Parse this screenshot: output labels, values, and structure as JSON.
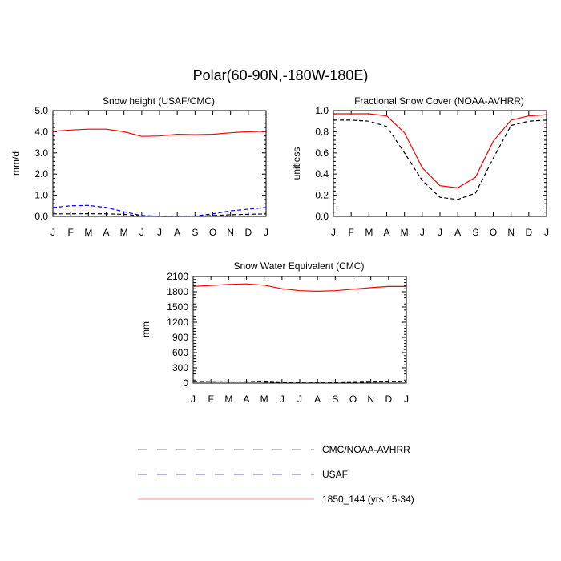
{
  "title": "Polar(60-90N,-180W-180E)",
  "colors": {
    "model": "#ff0000",
    "usaf": "#0000ff",
    "obs": "#000000",
    "legend_gray": "#808080",
    "legend_blue": "#6060c0",
    "legend_red": "#ff9090"
  },
  "legend": {
    "items": [
      {
        "label": "CMC/NOAA-AVHRR",
        "style": "dash-gray"
      },
      {
        "label": "USAF",
        "style": "dash-blue"
      },
      {
        "label": "1850_144 (yrs 15-34)",
        "style": "solid-red"
      }
    ]
  },
  "chart_data": [
    {
      "type": "line",
      "title": "Snow height (USAF/CMC)",
      "ylabel": "mm/d",
      "xlabel": "",
      "x": [
        "J",
        "F",
        "M",
        "A",
        "M",
        "J",
        "J",
        "A",
        "S",
        "O",
        "N",
        "D",
        "J"
      ],
      "ylim": [
        0,
        5
      ],
      "yticks": [
        "0.0",
        "1.0",
        "2.0",
        "3.0",
        "4.0",
        "5.0"
      ],
      "grid": false,
      "series": [
        {
          "name": "1850_144 (yrs 15-34)",
          "style": "solid-red",
          "values": [
            4.02,
            4.08,
            4.12,
            4.12,
            4.0,
            3.78,
            3.8,
            3.88,
            3.86,
            3.88,
            3.95,
            4.0,
            4.02
          ]
        },
        {
          "name": "USAF",
          "style": "dash-blue",
          "values": [
            0.42,
            0.5,
            0.52,
            0.42,
            0.22,
            0.04,
            0.01,
            0.01,
            0.02,
            0.12,
            0.26,
            0.34,
            0.42
          ]
        },
        {
          "name": "CMC/NOAA-AVHRR",
          "style": "dash-black",
          "values": [
            0.12,
            0.12,
            0.13,
            0.12,
            0.1,
            0.02,
            0.0,
            0.0,
            0.01,
            0.04,
            0.08,
            0.1,
            0.12
          ]
        }
      ]
    },
    {
      "type": "line",
      "title": "Fractional Snow Cover (NOAA-AVHRR)",
      "ylabel": "unitless",
      "xlabel": "",
      "x": [
        "J",
        "F",
        "M",
        "A",
        "M",
        "J",
        "J",
        "A",
        "S",
        "O",
        "N",
        "D",
        "J"
      ],
      "ylim": [
        0,
        1
      ],
      "yticks": [
        "0.0",
        "0.2",
        "0.4",
        "0.6",
        "0.8",
        "1.0"
      ],
      "grid": false,
      "series": [
        {
          "name": "1850_144 (yrs 15-34)",
          "style": "solid-red",
          "values": [
            0.97,
            0.97,
            0.97,
            0.95,
            0.79,
            0.46,
            0.29,
            0.27,
            0.37,
            0.71,
            0.91,
            0.95,
            0.96
          ]
        },
        {
          "name": "CMC/NOAA-AVHRR",
          "style": "dash-black",
          "values": [
            0.91,
            0.91,
            0.9,
            0.85,
            0.6,
            0.34,
            0.18,
            0.16,
            0.22,
            0.55,
            0.86,
            0.9,
            0.91
          ]
        }
      ]
    },
    {
      "type": "line",
      "title": "Snow Water Equivalent (CMC)",
      "ylabel": "mm",
      "xlabel": "",
      "x": [
        "J",
        "F",
        "M",
        "A",
        "M",
        "J",
        "J",
        "A",
        "S",
        "O",
        "N",
        "D",
        "J"
      ],
      "ylim": [
        0,
        2100
      ],
      "yticks": [
        "0",
        "300",
        "600",
        "900",
        "1200",
        "1500",
        "1800",
        "2100"
      ],
      "grid": false,
      "series": [
        {
          "name": "1850_144 (yrs 15-34)",
          "style": "solid-red",
          "values": [
            1905,
            1925,
            1945,
            1955,
            1930,
            1860,
            1820,
            1810,
            1820,
            1850,
            1880,
            1905,
            1905
          ]
        },
        {
          "name": "CMC/NOAA-AVHRR",
          "style": "dash-black",
          "values": [
            28,
            35,
            40,
            38,
            22,
            8,
            4,
            4,
            6,
            12,
            20,
            25,
            28
          ]
        }
      ]
    }
  ]
}
